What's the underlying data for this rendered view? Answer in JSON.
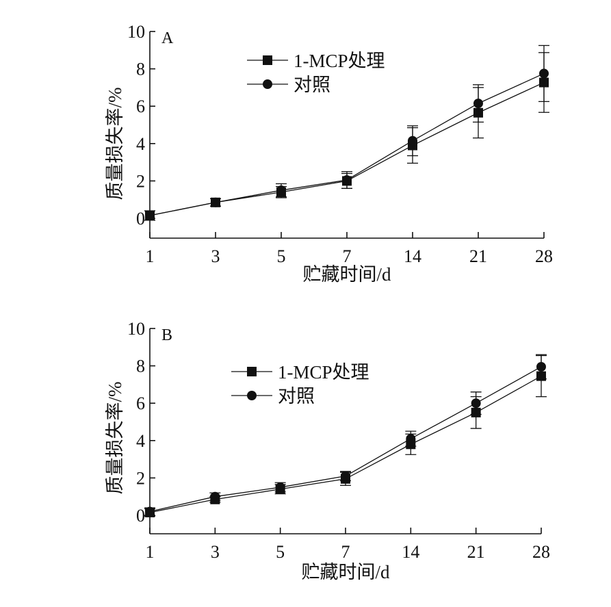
{
  "chart_data": [
    {
      "type": "line",
      "panel_label": "A",
      "xlabel": "贮藏时间/d",
      "ylabel": "质量损失率/%",
      "categories": [
        "1",
        "3",
        "5",
        "7",
        "14",
        "21",
        "28"
      ],
      "ylim": [
        -1.05,
        10
      ],
      "yticks": [
        "0",
        "2",
        "4",
        "6",
        "8",
        "10"
      ],
      "grid": false,
      "legend_position": "top-left",
      "series": [
        {
          "name": "1-MCP处理",
          "marker": "square",
          "values": [
            0.15,
            0.85,
            1.4,
            2.0,
            3.9,
            5.65,
            7.27
          ],
          "error": [
            0.25,
            0.2,
            0.3,
            0.4,
            0.95,
            1.35,
            1.6
          ]
        },
        {
          "name": "对照",
          "marker": "circle",
          "values": [
            0.15,
            0.85,
            1.5,
            2.05,
            4.15,
            6.15,
            7.75
          ],
          "error": [
            0.25,
            0.2,
            0.35,
            0.45,
            0.8,
            1.0,
            1.5
          ]
        }
      ]
    },
    {
      "type": "line",
      "panel_label": "B",
      "xlabel": "贮藏时间/d",
      "ylabel": "质量损失率/%",
      "categories": [
        "1",
        "3",
        "5",
        "7",
        "14",
        "21",
        "28"
      ],
      "ylim": [
        -1.0,
        10
      ],
      "yticks": [
        "0",
        "2",
        "4",
        "6",
        "8",
        "10"
      ],
      "grid": false,
      "legend_position": "top-left",
      "series": [
        {
          "name": "1-MCP处理",
          "marker": "square",
          "values": [
            0.15,
            0.85,
            1.4,
            1.95,
            3.8,
            5.5,
            7.45
          ],
          "error": [
            0.2,
            0.15,
            0.25,
            0.35,
            0.55,
            0.85,
            1.1
          ]
        },
        {
          "name": "对照",
          "marker": "circle",
          "values": [
            0.2,
            1.0,
            1.5,
            2.1,
            4.1,
            6.0,
            7.95
          ],
          "error": [
            0.2,
            0.2,
            0.25,
            0.25,
            0.4,
            0.6,
            0.65
          ]
        }
      ]
    }
  ]
}
